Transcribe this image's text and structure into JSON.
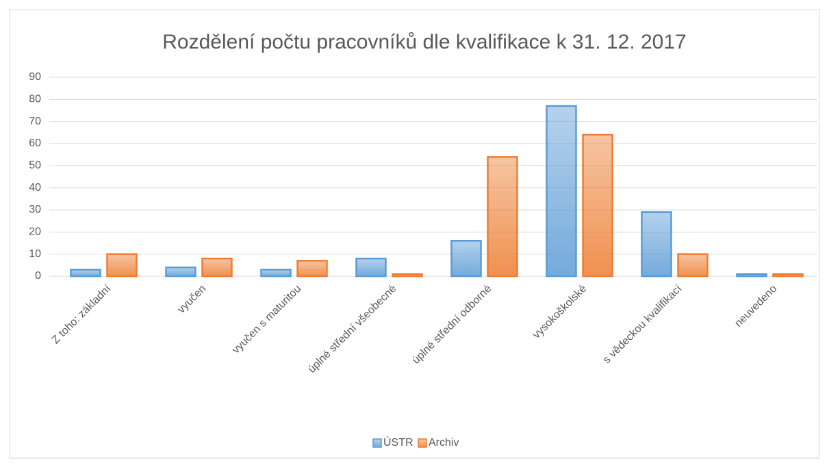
{
  "chart_data": {
    "type": "bar",
    "title": "Rozdělení počtu pracovníků dle kvalifikace k 31. 12. 2017",
    "categories": [
      "Z toho: základní",
      "vyučen",
      "vyučen s maturitou",
      "úplné střední všeobecné",
      "úplné střední odborné",
      "vysokoškolské",
      "s vědeckou kvalifikací",
      "neuvedeno"
    ],
    "series": [
      {
        "name": "ÚSTR",
        "color": "#5b9bd5",
        "values": [
          3,
          4,
          3,
          8,
          16,
          77,
          29,
          1
        ]
      },
      {
        "name": "Archiv",
        "color": "#ed7d31",
        "values": [
          10,
          8,
          7,
          1,
          54,
          64,
          10,
          1
        ]
      }
    ],
    "ylim": [
      0,
      90
    ],
    "yticks": [
      0,
      10,
      20,
      30,
      40,
      50,
      60,
      70,
      80,
      90
    ],
    "grid": true,
    "legend": "bottom"
  }
}
